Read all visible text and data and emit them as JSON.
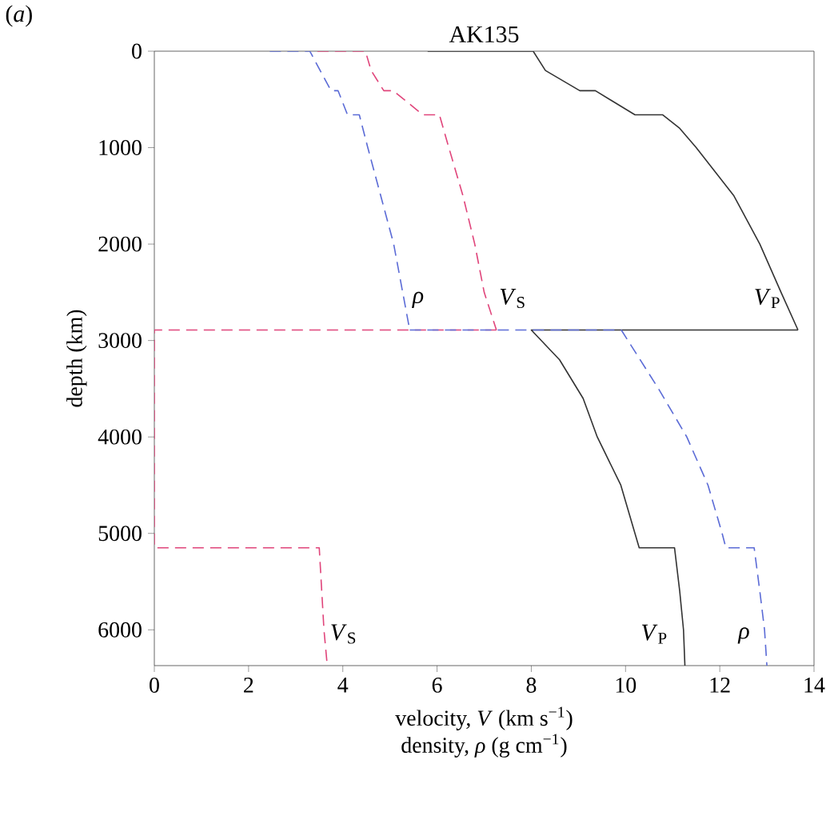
{
  "chart_data": {
    "type": "line",
    "title": "AK135",
    "xlabel": "velocity, *V* (km s$^{−1}$)",
    "ylabel": "depth (km)",
    "annotations": [
      "(*a*)",
      "density, *ρ* (g cm$^{−1}$)"
    ],
    "series": [
      {
        "name": "*V*$_{P}$",
        "color": "#333333",
        "line_style": "solid",
        "x": [
          5.8,
          8.04,
          8.3,
          9.03,
          9.36,
          10.2,
          10.79,
          11.15,
          11.5,
          12.3,
          12.85,
          13.3,
          13.66
        ],
        "values": [
          0,
          0,
          200,
          410,
          410,
          660,
          660,
          800,
          1000,
          1500,
          2000,
          2500,
          2891
        ]
      },
      {
        "name": "*V*$_{P}$",
        "color": "#333333",
        "line_style": "solid",
        "x": [
          13.66,
          8.0,
          8.6,
          9.1,
          9.4,
          9.9,
          10.2,
          10.29,
          11.04,
          11.15,
          11.23,
          11.26
        ],
        "values": [
          2891,
          2891,
          3200,
          3600,
          4000,
          4500,
          5000,
          5150,
          5150,
          5600,
          6000,
          6371
        ]
      },
      {
        "name": "*V*$_{S}$",
        "color": "#e0457b",
        "line_style": "dashed",
        "x": [
          3.46,
          4.48,
          4.6,
          4.87,
          5.07,
          5.7,
          6.05,
          6.25,
          6.55,
          6.8,
          7.0,
          7.26
        ],
        "values": [
          0,
          0,
          200,
          410,
          410,
          660,
          660,
          1000,
          1500,
          2000,
          2500,
          2891
        ]
      },
      {
        "name": "*V*$_{S}$",
        "color": "#e0457b",
        "line_style": "dashed",
        "x": [
          7.26,
          0,
          0,
          3.5,
          3.6,
          3.67
        ],
        "values": [
          2891,
          2891,
          5150,
          5150,
          6000,
          6371
        ]
      },
      {
        "name": "*ρ*",
        "color": "#5b6bd6",
        "line_style": "dashed",
        "x": [
          2.45,
          3.3,
          3.75,
          3.9,
          4.1,
          4.35,
          4.53,
          5.08,
          5.42
        ],
        "values": [
          0,
          0,
          410,
          410,
          660,
          660,
          1000,
          2000,
          2891
        ]
      },
      {
        "name": "*ρ*",
        "color": "#5b6bd6",
        "line_style": "dashed",
        "x": [
          5.42,
          9.91,
          10.7,
          11.3,
          11.75,
          12.05,
          12.13,
          12.73,
          12.85,
          12.95,
          13.0
        ],
        "values": [
          2891,
          2891,
          3500,
          4000,
          4500,
          5000,
          5150,
          5150,
          5600,
          6000,
          6371
        ]
      }
    ],
    "xlim": [
      0,
      14
    ],
    "xticks": [
      0,
      2,
      4,
      6,
      8,
      10,
      12,
      14
    ],
    "ylim": [
      6371,
      0
    ],
    "yticks": [
      0,
      1000,
      2000,
      3000,
      4000,
      5000,
      6000
    ],
    "grid": false,
    "legend": false,
    "marker": "none"
  }
}
